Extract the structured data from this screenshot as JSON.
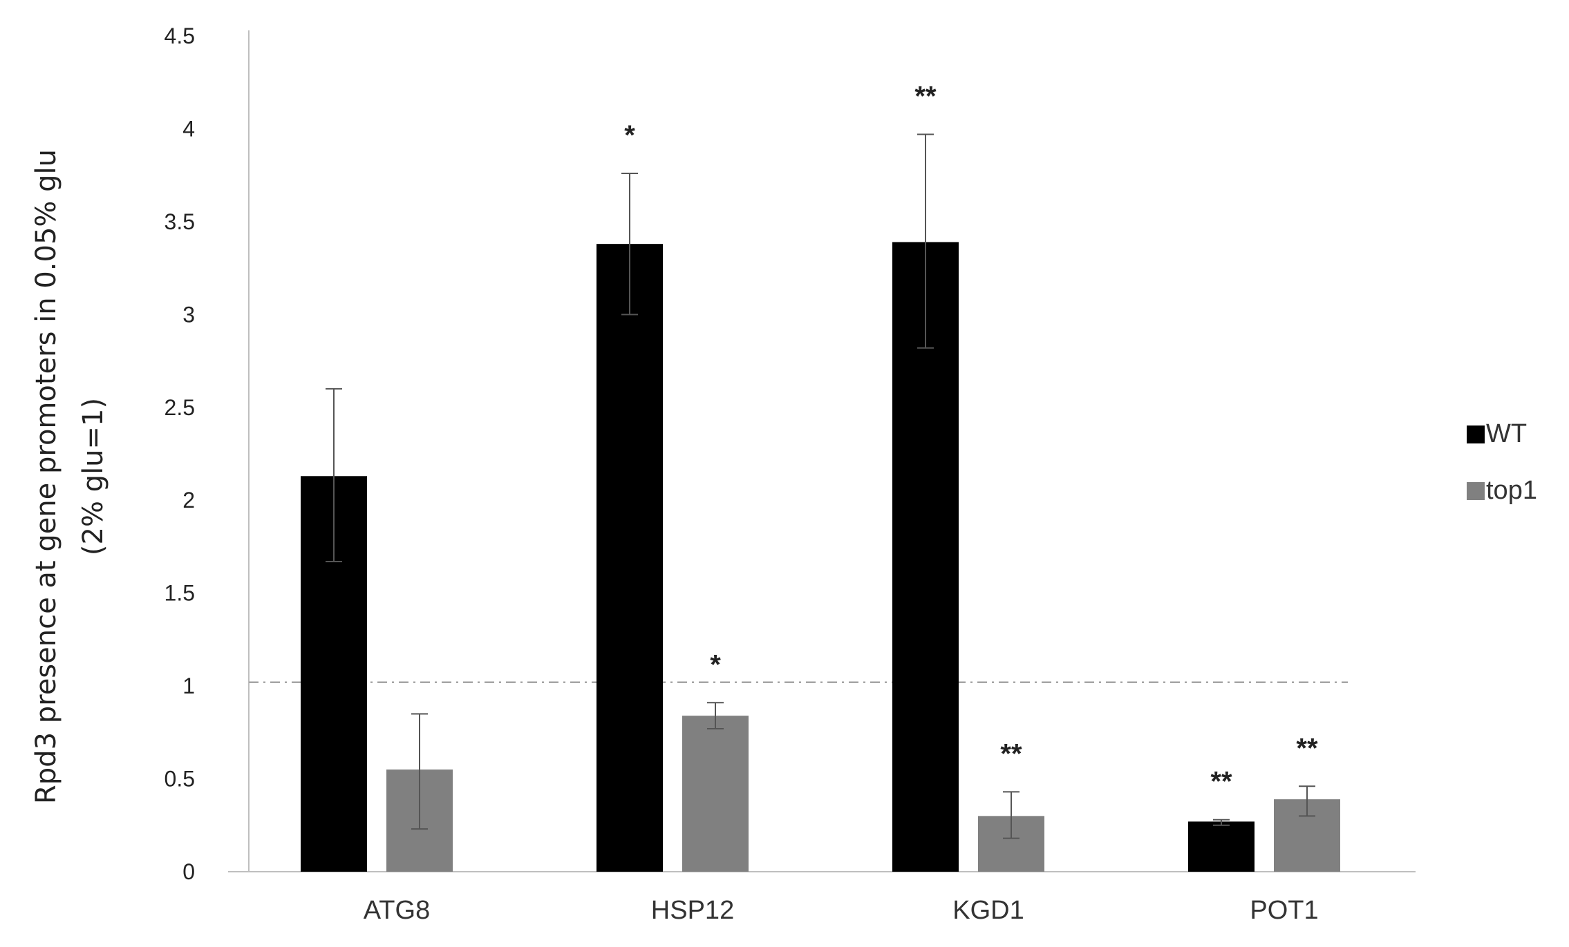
{
  "chart_data": {
    "type": "bar",
    "ylabel_line1": "Rpd3 presence at gene promoters in 0.05% glu",
    "ylabel_line2": "(2% glu=1)",
    "ylim": [
      0,
      4.5
    ],
    "yticks": [
      "0",
      "0.5",
      "1",
      "1.5",
      "2",
      "2.5",
      "3",
      "3.5",
      "4",
      "4.5"
    ],
    "ytick_values": [
      0,
      0.5,
      1,
      1.5,
      2,
      2.5,
      3,
      3.5,
      4,
      4.5
    ],
    "categories": [
      "ATG8",
      "HSP12",
      "KGD1",
      "POT1"
    ],
    "reference_line": 1.02,
    "grid": false,
    "legend_position": "right",
    "series": [
      {
        "name": "WT",
        "color": "#000000",
        "values": [
          2.13,
          3.38,
          3.39,
          0.27
        ],
        "err_low": [
          1.67,
          3.0,
          2.82,
          0.25
        ],
        "err_high": [
          2.6,
          3.76,
          3.97,
          0.28
        ],
        "annotations": [
          "",
          "*",
          "**",
          "**"
        ]
      },
      {
        "name": "top1",
        "color": "#808080",
        "values": [
          0.55,
          0.84,
          0.3,
          0.39
        ],
        "err_low": [
          0.23,
          0.77,
          0.18,
          0.3
        ],
        "err_high": [
          0.85,
          0.91,
          0.43,
          0.46
        ],
        "annotations": [
          "",
          "*",
          "**",
          "**"
        ]
      }
    ]
  }
}
